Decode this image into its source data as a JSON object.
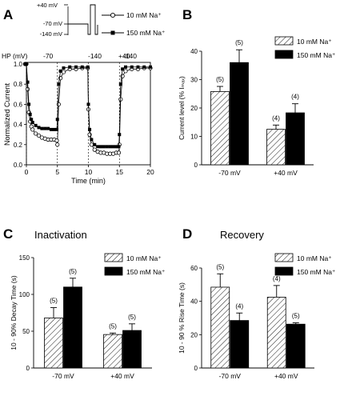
{
  "panels": {
    "A": {
      "letter": "A"
    },
    "B": {
      "letter": "B"
    },
    "C": {
      "letter": "C",
      "title": "Inactivation"
    },
    "D": {
      "letter": "D",
      "title": "Recovery"
    }
  },
  "protocol": {
    "labels": [
      "+40 mV",
      "-70 mV",
      "-140 mV"
    ],
    "legend": [
      "10 mM Na⁺",
      "150 mM Na⁺"
    ]
  },
  "hp_labels": [
    "HP (mV)",
    "-70",
    "-140",
    "+40",
    "-140"
  ],
  "chart_data": [
    {
      "panel": "A",
      "type": "line",
      "xlabel": "Time (min)",
      "ylabel": "Normalized Current",
      "xlim": [
        0,
        20
      ],
      "ylim": [
        0.0,
        1.0
      ],
      "xticks": [
        "0",
        "5",
        "10",
        "15",
        "20"
      ],
      "yticks": [
        "0.0",
        "0.2",
        "0.4",
        "0.6",
        "0.8",
        "1.0"
      ],
      "series": [
        {
          "name": "10 mM Na⁺",
          "marker": "open-circle",
          "x": [
            -0.2,
            0.0,
            0.2,
            0.4,
            0.6,
            0.8,
            1.0,
            1.5,
            2.0,
            2.5,
            3.0,
            3.5,
            4.0,
            4.5,
            4.9,
            5.0,
            5.2,
            5.5,
            6.0,
            7.0,
            8.0,
            9.0,
            9.9,
            10.0,
            10.2,
            10.5,
            11.0,
            11.5,
            12.0,
            12.5,
            13.0,
            13.5,
            14.0,
            14.5,
            14.9,
            15.0,
            15.2,
            15.5,
            16.0,
            17.0,
            18.0,
            19.0,
            20.0
          ],
          "y": [
            1.0,
            1.0,
            0.75,
            0.52,
            0.43,
            0.38,
            0.35,
            0.31,
            0.29,
            0.27,
            0.26,
            0.25,
            0.25,
            0.25,
            0.24,
            0.2,
            0.6,
            0.86,
            0.92,
            0.95,
            0.95,
            0.96,
            0.96,
            0.55,
            0.3,
            0.2,
            0.15,
            0.13,
            0.12,
            0.12,
            0.11,
            0.11,
            0.11,
            0.12,
            0.12,
            0.2,
            0.65,
            0.88,
            0.93,
            0.95,
            0.95,
            0.96,
            0.96
          ]
        },
        {
          "name": "150 mM Na⁺",
          "marker": "filled-square",
          "x": [
            -0.2,
            0.0,
            0.2,
            0.4,
            0.6,
            0.8,
            1.0,
            1.5,
            2.0,
            2.5,
            3.0,
            3.5,
            4.0,
            4.5,
            4.9,
            5.0,
            5.2,
            5.5,
            6.0,
            7.0,
            8.0,
            9.0,
            9.9,
            10.0,
            10.2,
            10.5,
            11.0,
            11.5,
            12.0,
            12.5,
            13.0,
            13.5,
            14.0,
            14.5,
            14.9,
            15.0,
            15.2,
            15.5,
            16.0,
            17.0,
            18.0,
            19.0,
            20.0
          ],
          "y": [
            1.0,
            1.0,
            0.82,
            0.6,
            0.5,
            0.45,
            0.42,
            0.39,
            0.37,
            0.36,
            0.36,
            0.36,
            0.35,
            0.35,
            0.35,
            0.45,
            0.8,
            0.93,
            0.96,
            0.97,
            0.97,
            0.97,
            0.97,
            0.6,
            0.35,
            0.25,
            0.2,
            0.18,
            0.18,
            0.18,
            0.18,
            0.18,
            0.18,
            0.18,
            0.18,
            0.3,
            0.8,
            0.95,
            0.97,
            0.97,
            0.97,
            0.97,
            0.97
          ]
        }
      ]
    },
    {
      "panel": "B",
      "type": "bar",
      "categories": [
        "-70 mV",
        "+40 mV"
      ],
      "ylabel": "Current level (% Iₘₐₓ)",
      "ylim": [
        0,
        40
      ],
      "yticks": [
        "0",
        "10",
        "20",
        "30",
        "40"
      ],
      "legend": "top-right",
      "series": [
        {
          "name": "10 mM Na⁺",
          "fill": "hatched",
          "values": [
            25.8,
            12.5
          ],
          "errors": [
            1.8,
            1.5
          ],
          "n": [
            "(5)",
            "(4)"
          ]
        },
        {
          "name": "150 mM Na⁺",
          "fill": "solid",
          "values": [
            36.0,
            18.3
          ],
          "errors": [
            4.5,
            3.2
          ],
          "n": [
            "(5)",
            "(4)"
          ]
        }
      ]
    },
    {
      "panel": "C",
      "type": "bar",
      "title": "Inactivation",
      "categories": [
        "-70 mV",
        "+40 mV"
      ],
      "ylabel": "10 - 90% Decay Time (s)",
      "ylim": [
        0,
        150
      ],
      "yticks": [
        "0",
        "50",
        "100",
        "150"
      ],
      "legend": "top-right",
      "series": [
        {
          "name": "10 mM Na⁺",
          "fill": "hatched",
          "values": [
            68,
            45.5
          ],
          "errors": [
            14,
            2
          ],
          "n": [
            "(5)",
            "(5)"
          ]
        },
        {
          "name": "150 mM Na⁺",
          "fill": "solid",
          "values": [
            110,
            51
          ],
          "errors": [
            12,
            9
          ],
          "n": [
            "(5)",
            "(5)"
          ]
        }
      ]
    },
    {
      "panel": "D",
      "type": "bar",
      "title": "Recovery",
      "categories": [
        "-70 mV",
        "+40 mV"
      ],
      "ylabel": "10 - 90 % Rise Time (s)",
      "ylim": [
        0,
        60
      ],
      "yticks": [
        "0",
        "20",
        "40",
        "60"
      ],
      "legend": "top-right",
      "series": [
        {
          "name": "10 mM Na⁺",
          "fill": "hatched",
          "values": [
            48.5,
            42.5
          ],
          "errors": [
            8,
            7
          ],
          "n": [
            "(5)",
            "(4)"
          ]
        },
        {
          "name": "150 mM Na⁺",
          "fill": "solid",
          "values": [
            28.5,
            26.3
          ],
          "errors": [
            4.5,
            0.8
          ],
          "n": [
            "(4)",
            "(5)"
          ]
        }
      ]
    }
  ]
}
